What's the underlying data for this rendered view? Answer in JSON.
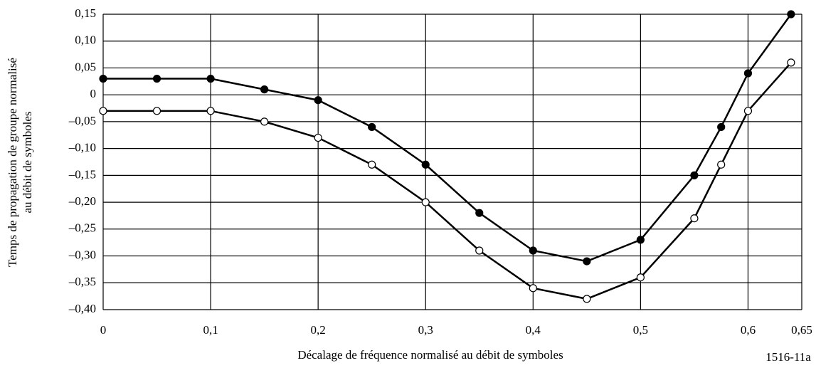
{
  "chart_data": {
    "type": "line",
    "ylabel": [
      "Temps de propagation de groupe normalisé",
      "au débit de symboles"
    ],
    "xlabel": "Décalage de fréquence normalisé au débit de symboles",
    "annotation": "1516-11a",
    "x": [
      0,
      0.05,
      0.1,
      0.15,
      0.2,
      0.25,
      0.3,
      0.35,
      0.4,
      0.45,
      0.5,
      0.55,
      0.575,
      0.6,
      0.64
    ],
    "series": [
      {
        "color": "#000000",
        "marker_fill": "#000000",
        "values": [
          0.03,
          0.03,
          0.03,
          0.01,
          -0.01,
          -0.06,
          -0.13,
          -0.22,
          -0.29,
          -0.31,
          -0.27,
          -0.15,
          -0.06,
          0.04,
          0.15
        ]
      },
      {
        "color": "#000000",
        "marker_fill": "#ffffff",
        "values": [
          -0.03,
          -0.03,
          -0.03,
          -0.05,
          -0.08,
          -0.13,
          -0.2,
          -0.29,
          -0.36,
          -0.38,
          -0.34,
          -0.23,
          -0.13,
          -0.03,
          0.06
        ]
      }
    ],
    "xlim": [
      0,
      0.65
    ],
    "xticks": [
      0,
      {
        "value": 0.1,
        "label": "0,1"
      },
      {
        "value": 0.2,
        "label": "0,2"
      },
      {
        "value": 0.3,
        "label": "0,3"
      },
      {
        "value": 0.4,
        "label": "0,4"
      },
      {
        "value": 0.5,
        "label": "0,5"
      },
      {
        "value": 0.6,
        "label": "0,6"
      },
      {
        "value": 0.65,
        "label": "0,65"
      }
    ],
    "ylim": [
      -0.4,
      0.15
    ],
    "yticks": [
      {
        "value": 0.15,
        "label": "0,15"
      },
      {
        "value": 0.1,
        "label": "0,10"
      },
      {
        "value": 0.05,
        "label": "0,05"
      },
      0,
      {
        "value": -0.05,
        "label": "–0,05"
      },
      {
        "value": -0.1,
        "label": "–0,10"
      },
      {
        "value": -0.15,
        "label": "–0,15"
      },
      {
        "value": -0.2,
        "label": "–0,20"
      },
      {
        "value": -0.25,
        "label": "–0,25"
      },
      {
        "value": -0.3,
        "label": "–0,30"
      },
      {
        "value": -0.35,
        "label": "–0,35"
      },
      {
        "value": -0.4,
        "label": "–0,40"
      }
    ],
    "grid": true
  }
}
